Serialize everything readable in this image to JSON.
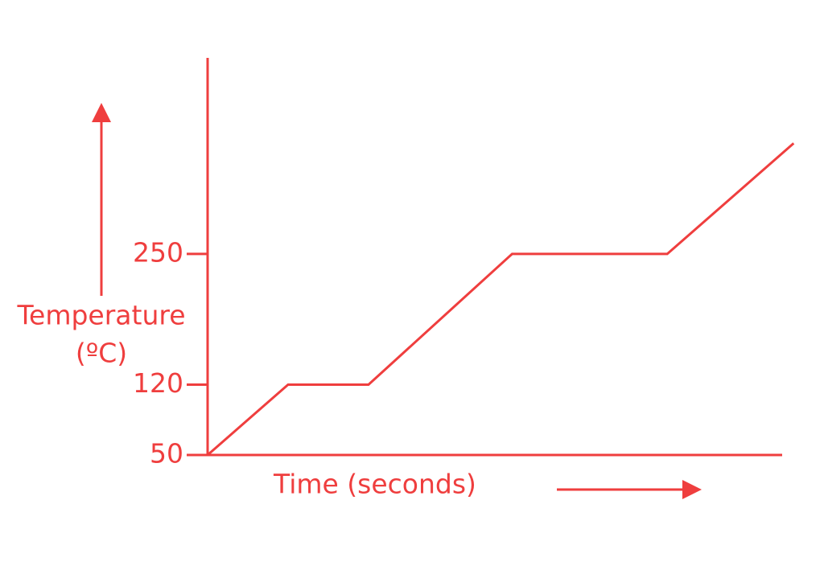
{
  "chart_data": {
    "type": "line",
    "x_label": "Time (seconds)",
    "y_label": [
      "Temperature",
      "(ºC)"
    ],
    "x": [
      0,
      14,
      28,
      53,
      80,
      102
    ],
    "series": [
      {
        "color": "#ef3e3e",
        "values": [
          50,
          120,
          120,
          250,
          250,
          360
        ]
      }
    ],
    "xlim": [
      0,
      100
    ],
    "ylim": [
      50,
      445
    ],
    "yticks": [
      50,
      120,
      250
    ]
  }
}
